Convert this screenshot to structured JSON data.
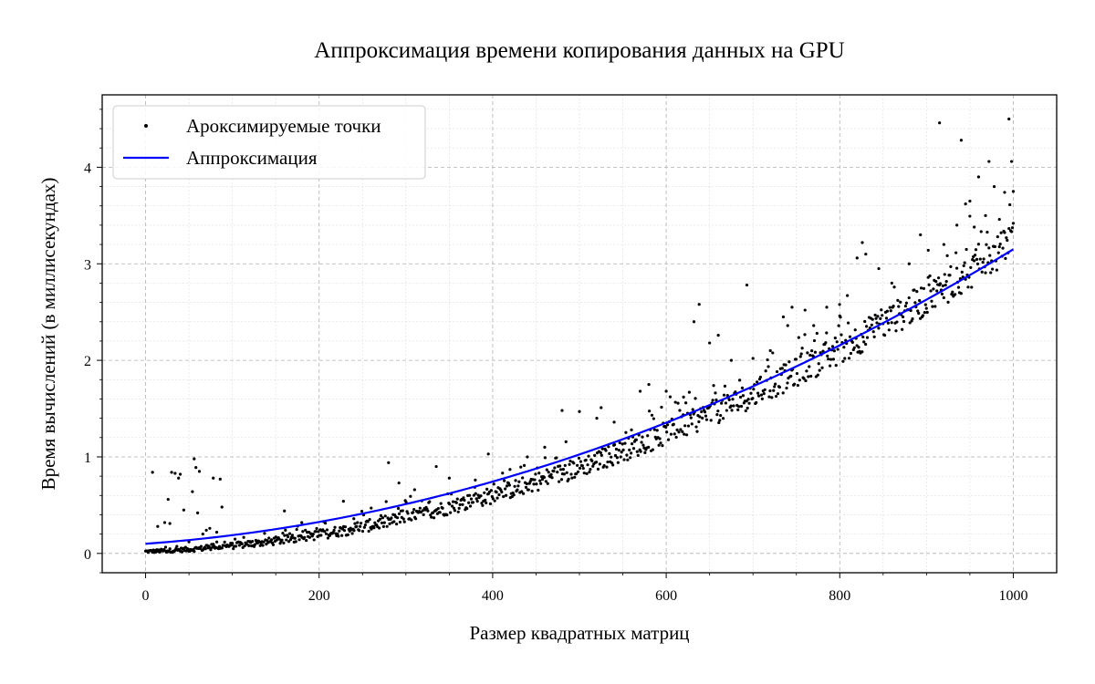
{
  "chart_data": {
    "type": "scatter",
    "title": "Аппроксимация времени копирования данных на GPU",
    "xlabel": "Размер квадратных матриц",
    "ylabel": "Время вычислений (в миллисекундах)",
    "xlim": [
      -50,
      1050
    ],
    "ylim": [
      -0.2,
      4.75
    ],
    "x_ticks": [
      0,
      200,
      400,
      600,
      800,
      1000
    ],
    "y_ticks": [
      0,
      1,
      2,
      3,
      4
    ],
    "grid": true,
    "legend_position": "top-left",
    "colors": {
      "points": "#000000",
      "fit": "#0000ff",
      "major_grid": "#b0b0b0",
      "minor_grid": "#dddddd"
    },
    "series": [
      {
        "name": "Ароксимируемые точки",
        "kind": "scatter",
        "trend": {
          "x_start": 0,
          "x_end": 1000,
          "count": 1000,
          "c": 0.02,
          "b": 0.0003,
          "a": 2.9e-06
        },
        "outliers": [
          [
            8,
            0.84
          ],
          [
            14,
            0.28
          ],
          [
            22,
            0.32
          ],
          [
            26,
            0.56
          ],
          [
            28,
            0.31
          ],
          [
            30,
            0.84
          ],
          [
            34,
            0.83
          ],
          [
            38,
            0.78
          ],
          [
            40,
            0.82
          ],
          [
            44,
            0.45
          ],
          [
            50,
            0.12
          ],
          [
            54,
            0.64
          ],
          [
            56,
            0.98
          ],
          [
            58,
            0.89
          ],
          [
            60,
            0.42
          ],
          [
            62,
            0.85
          ],
          [
            66,
            0.2
          ],
          [
            70,
            0.24
          ],
          [
            74,
            0.26
          ],
          [
            78,
            0.78
          ],
          [
            82,
            0.22
          ],
          [
            86,
            0.77
          ],
          [
            88,
            0.48
          ],
          [
            160,
            0.44
          ],
          [
            180,
            0.32
          ],
          [
            228,
            0.54
          ],
          [
            240,
            0.36
          ],
          [
            260,
            0.47
          ],
          [
            280,
            0.94
          ],
          [
            292,
            0.73
          ],
          [
            310,
            0.66
          ],
          [
            335,
            0.9
          ],
          [
            350,
            0.78
          ],
          [
            380,
            0.76
          ],
          [
            395,
            1.03
          ],
          [
            420,
            0.87
          ],
          [
            440,
            1.0
          ],
          [
            460,
            1.1
          ],
          [
            480,
            1.48
          ],
          [
            500,
            1.47
          ],
          [
            520,
            1.4
          ],
          [
            525,
            1.51
          ],
          [
            540,
            1.36
          ],
          [
            560,
            1.28
          ],
          [
            570,
            1.68
          ],
          [
            580,
            1.75
          ],
          [
            600,
            1.68
          ],
          [
            620,
            1.62
          ],
          [
            632,
            2.4
          ],
          [
            638,
            2.58
          ],
          [
            650,
            2.18
          ],
          [
            660,
            2.26
          ],
          [
            675,
            2.0
          ],
          [
            693,
            2.78
          ],
          [
            700,
            2.02
          ],
          [
            720,
            2.1
          ],
          [
            735,
            2.45
          ],
          [
            740,
            2.36
          ],
          [
            745,
            2.55
          ],
          [
            760,
            2.52
          ],
          [
            770,
            2.36
          ],
          [
            785,
            2.55
          ],
          [
            800,
            2.46
          ],
          [
            820,
            3.06
          ],
          [
            826,
            3.22
          ],
          [
            830,
            3.1
          ],
          [
            845,
            2.95
          ],
          [
            860,
            2.8
          ],
          [
            880,
            3.0
          ],
          [
            893,
            3.3
          ],
          [
            902,
            3.14
          ],
          [
            915,
            4.46
          ],
          [
            920,
            3.2
          ],
          [
            935,
            3.4
          ],
          [
            940,
            4.28
          ],
          [
            945,
            3.62
          ],
          [
            950,
            3.65
          ],
          [
            955,
            3.38
          ],
          [
            960,
            3.9
          ],
          [
            968,
            3.5
          ],
          [
            972,
            4.06
          ],
          [
            978,
            3.8
          ],
          [
            984,
            3.46
          ],
          [
            990,
            3.74
          ],
          [
            995,
            4.5
          ],
          [
            998,
            4.06
          ],
          [
            1000,
            3.42
          ]
        ]
      },
      {
        "name": "Аппроксимация",
        "kind": "line",
        "model": {
          "a": 2.4e-06,
          "b": 0.00065,
          "c": 0.1
        },
        "x_range": [
          0,
          1000
        ]
      }
    ]
  }
}
